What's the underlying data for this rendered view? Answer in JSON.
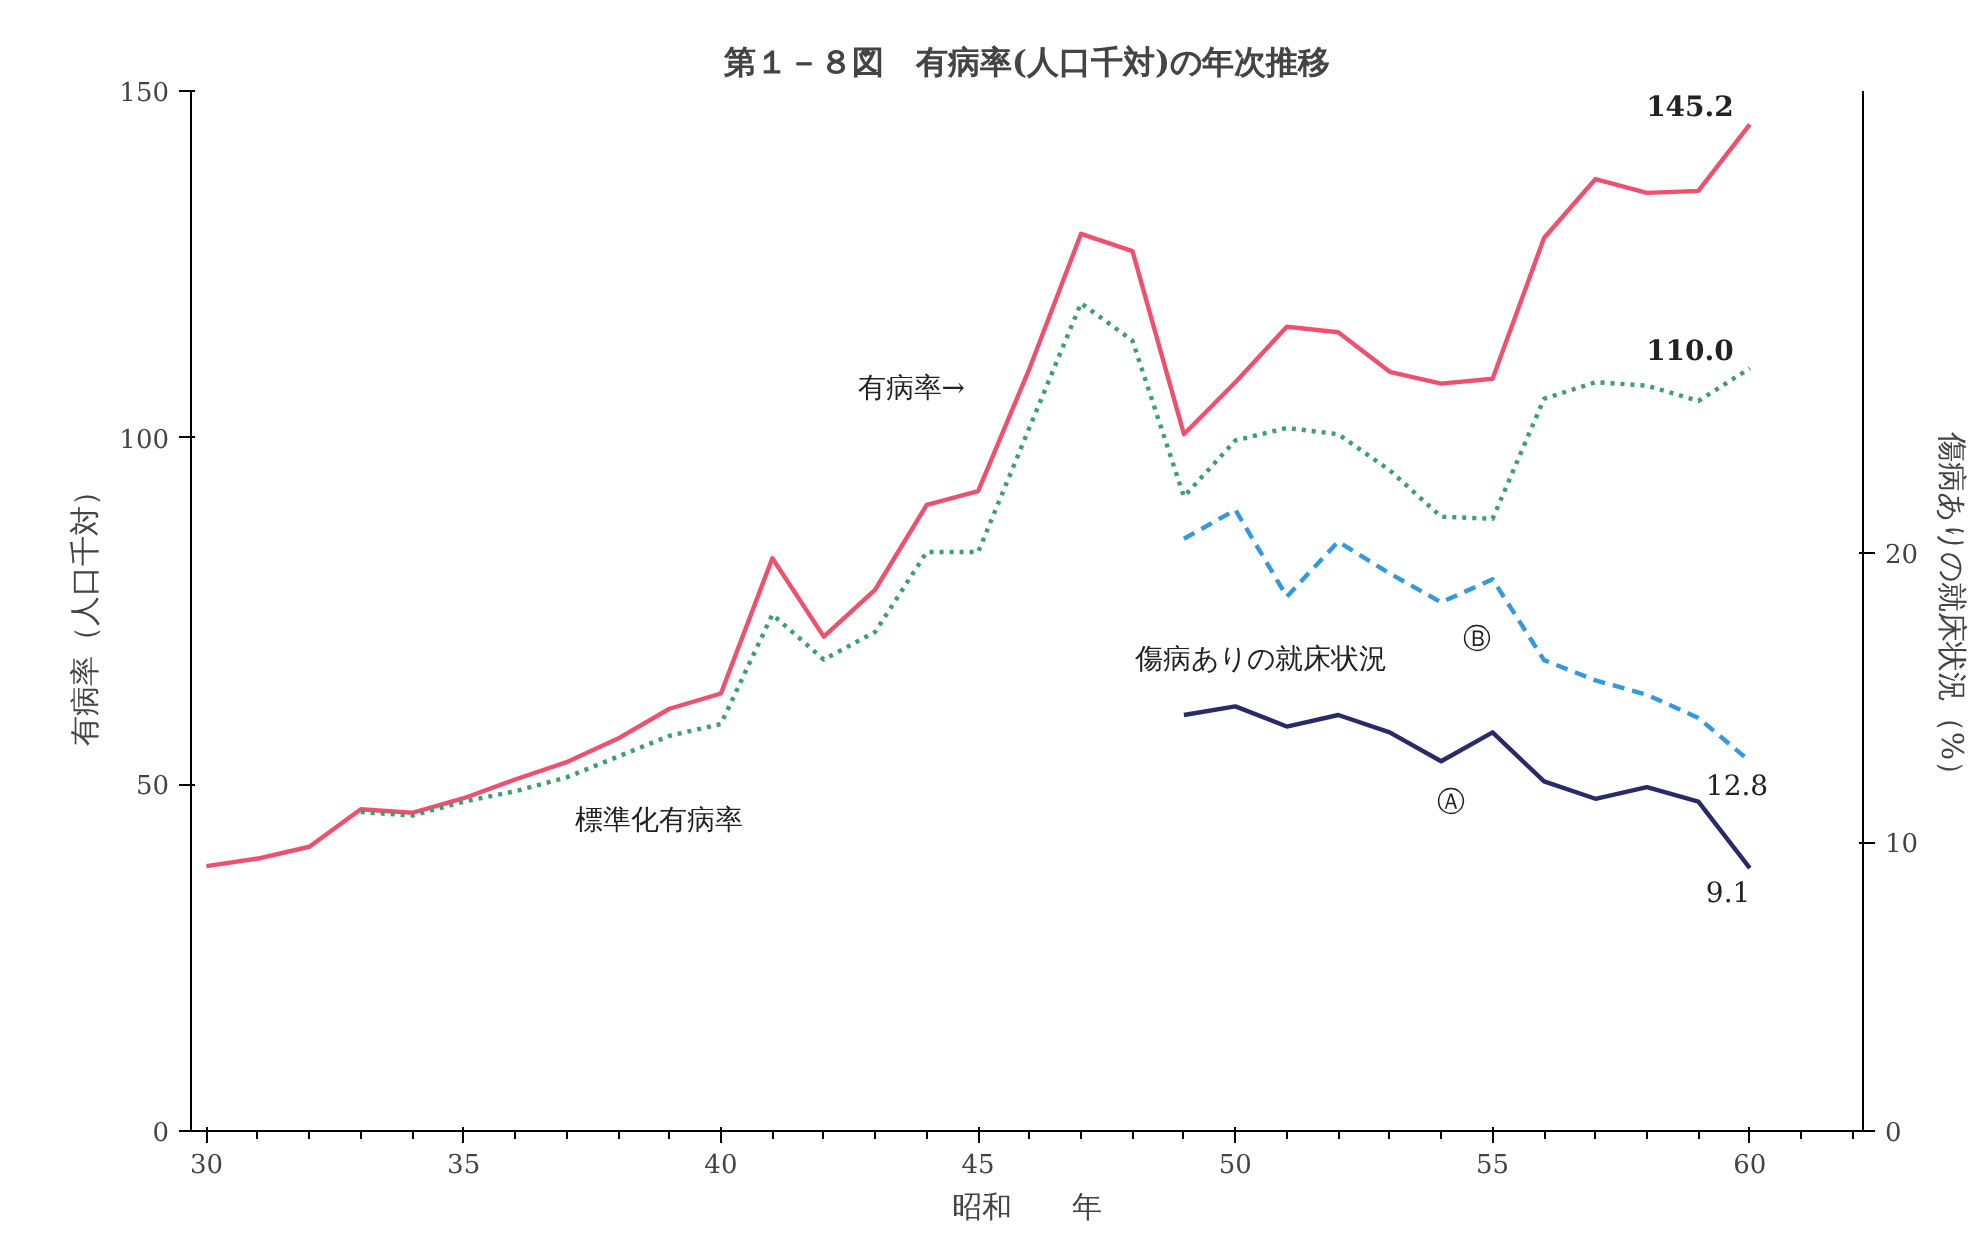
{
  "chart_data": {
    "type": "line",
    "title": "第１－８図　有病率(人口千対)の年次推移",
    "xlabel": "昭和　　年",
    "ylabel": "有病率（人口千対）",
    "y2label": "傷病ありの就床状況（%）",
    "xlim": [
      29.7,
      62.2
    ],
    "xticks": [
      30,
      35,
      40,
      45,
      50,
      55,
      60
    ],
    "ylim": [
      0,
      150
    ],
    "yticks": [
      0,
      50,
      100,
      150
    ],
    "y2lim": [
      0,
      36
    ],
    "y2ticks": [
      0,
      10,
      20
    ],
    "grid": false,
    "marker": "none",
    "series": [
      {
        "color": "#f0506e",
        "line_style": "solid",
        "x": [
          30,
          31,
          32,
          33,
          34,
          35,
          36,
          37,
          38,
          39,
          40,
          41,
          42,
          43,
          44,
          45,
          46,
          47,
          48,
          49,
          50,
          51,
          52,
          53,
          54,
          55,
          56,
          57,
          58,
          59,
          60
        ],
        "values": [
          38.2,
          39.3,
          41,
          46.4,
          45.9,
          48,
          50.7,
          53.2,
          56.6,
          60.9,
          63.1,
          82.6,
          71.3,
          78.1,
          90.3,
          92.3,
          110,
          129.4,
          126.9,
          100.5,
          108,
          116,
          115.2,
          109.5,
          107.8,
          108.5,
          128.8,
          137.3,
          135.3,
          135.6,
          145.2
        ],
        "value_labels": [
          null,
          null,
          null,
          null,
          null,
          null,
          null,
          null,
          null,
          null,
          null,
          null,
          null,
          null,
          null,
          null,
          null,
          null,
          null,
          null,
          null,
          null,
          null,
          null,
          null,
          null,
          null,
          null,
          null,
          null,
          "145.2"
        ]
      },
      {
        "color": "#3aa070",
        "line_style": "dotted",
        "x": [
          33,
          34,
          35,
          36,
          37,
          38,
          39,
          40,
          41,
          42,
          43,
          44,
          45,
          46,
          47,
          48,
          49,
          50,
          51,
          52,
          53,
          54,
          55,
          56,
          57,
          58,
          59,
          60
        ],
        "values": [
          46,
          45.5,
          47.5,
          49,
          51,
          54,
          57,
          58.7,
          74.5,
          68,
          72,
          83.5,
          83.5,
          101.5,
          119.4,
          114,
          91.5,
          99.6,
          101.4,
          100.5,
          95.3,
          88.6,
          88.3,
          105.6,
          108,
          107.5,
          105.3,
          110.0
        ],
        "value_labels": [
          null,
          null,
          null,
          null,
          null,
          null,
          null,
          null,
          null,
          null,
          null,
          null,
          null,
          null,
          null,
          null,
          null,
          null,
          null,
          null,
          null,
          null,
          null,
          null,
          null,
          null,
          null,
          "110.0"
        ]
      },
      {
        "color": "#3399e0",
        "line_style": "dashed",
        "axis": "y2",
        "x": [
          49,
          50,
          51,
          52,
          53,
          54,
          55,
          56,
          57,
          58,
          59,
          60
        ],
        "values": [
          20.5,
          21.5,
          18.5,
          20.4,
          19.3,
          18.3,
          19.1,
          16.3,
          15.6,
          15.1,
          14.3,
          12.8
        ],
        "value_labels": [
          null,
          null,
          null,
          null,
          null,
          null,
          null,
          null,
          null,
          null,
          null,
          "12.8"
        ]
      },
      {
        "color": "#2a2a6a",
        "line_style": "solid",
        "axis": "y2",
        "x": [
          49,
          50,
          51,
          52,
          53,
          54,
          55,
          56,
          57,
          58,
          59,
          60
        ],
        "values": [
          14.4,
          14.7,
          14.0,
          14.4,
          13.8,
          12.8,
          13.8,
          12.1,
          11.5,
          11.9,
          11.4,
          9.1
        ],
        "value_labels": [
          null,
          null,
          null,
          null,
          null,
          null,
          null,
          null,
          null,
          null,
          null,
          "9.1"
        ]
      }
    ],
    "annotations": [
      "有病率→",
      "標準化有病率",
      "傷病ありの就床状況",
      "Ⓑ",
      "Ⓐ"
    ]
  }
}
